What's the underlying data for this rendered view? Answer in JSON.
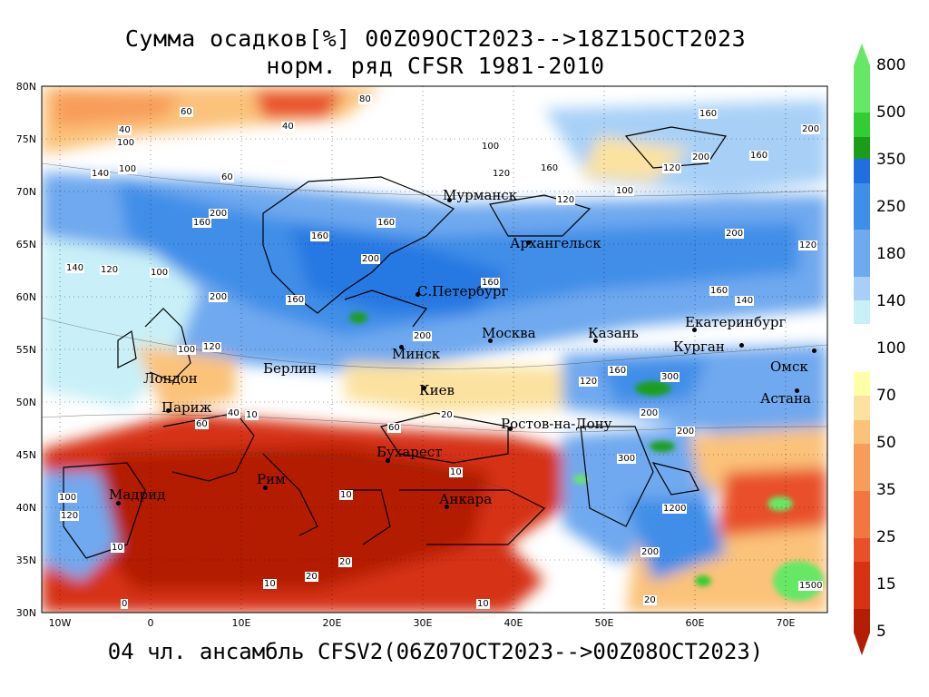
{
  "title": {
    "line1": "Сумма осадков[%] 00Z09OCT2023-->18Z15OCT2023",
    "line2": "норм. ряд CFSR 1981-2010"
  },
  "footer": "04 чл. ансамбль CFSV2(06Z07OCT2023-->00Z08OCT2023)",
  "axes": {
    "lat": [
      "80N",
      "75N",
      "70N",
      "65N",
      "60N",
      "55N",
      "50N",
      "45N",
      "40N",
      "35N",
      "30N"
    ],
    "lon": [
      "10W",
      "0",
      "10E",
      "20E",
      "30E",
      "40E",
      "50E",
      "60E",
      "70E"
    ]
  },
  "cities": [
    {
      "name": "Мурманск"
    },
    {
      "name": "Архангельск"
    },
    {
      "name": "С.Петербург"
    },
    {
      "name": "Москва"
    },
    {
      "name": "Казань"
    },
    {
      "name": "Екатеринбург"
    },
    {
      "name": "Курган"
    },
    {
      "name": "Омск"
    },
    {
      "name": "Астана"
    },
    {
      "name": "Минск"
    },
    {
      "name": "Берлин"
    },
    {
      "name": "Лондон"
    },
    {
      "name": "Париж"
    },
    {
      "name": "Киев"
    },
    {
      "name": "Ростов-на-Дону"
    },
    {
      "name": "Бухарест"
    },
    {
      "name": "Рим"
    },
    {
      "name": "Мадрид"
    },
    {
      "name": "Анкара"
    }
  ],
  "contour_labels": [
    "80",
    "40",
    "60",
    "100",
    "40",
    "140",
    "100",
    "120",
    "160",
    "200",
    "20",
    "10",
    "300",
    "1500",
    "0",
    "1200"
  ],
  "colorbar": {
    "labels": [
      "800",
      "500",
      "350",
      "250",
      "180",
      "140",
      "100",
      "70",
      "50",
      "35",
      "25",
      "15",
      "5"
    ],
    "colors": {
      "c800": "#66e866",
      "c500": "#33cc33",
      "c350": "#1a9e1a",
      "c300": "#1f6fe0",
      "c250": "#3f8ee8",
      "c180": "#6fa9ef",
      "c140": "#a8d0f7",
      "c120": "#c9f0f8",
      "w70": "#ffffa8",
      "w60": "#fce2a0",
      "w50": "#fbc27a",
      "w40": "#f89c5a",
      "w35": "#f3753f",
      "w25": "#e8502a",
      "w15": "#d63213",
      "w5": "#b41e06"
    }
  }
}
